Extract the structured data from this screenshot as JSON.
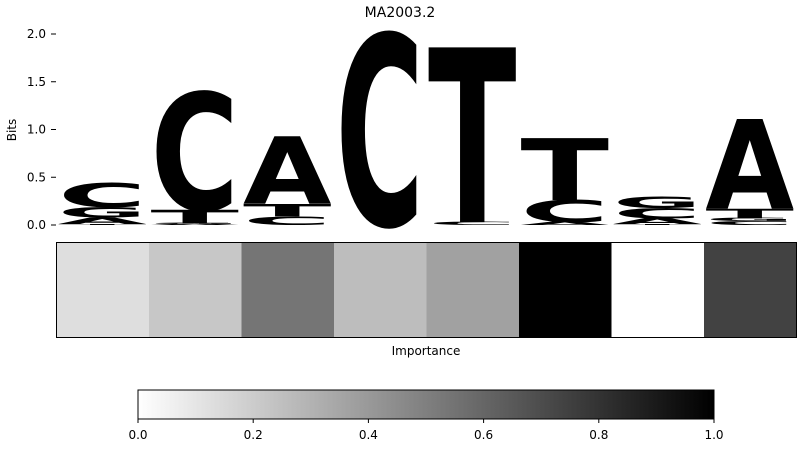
{
  "chart_data": {
    "type": "sequence-logo-with-importance",
    "title": "MA2003.2",
    "logo": {
      "ylabel": "Bits",
      "ylim": [
        0,
        2.0
      ],
      "yticks": [
        "0.0",
        "0.5",
        "1.0",
        "1.5",
        "2.0"
      ],
      "colors": {
        "A": "#4fa64f",
        "C": "#4c4cff",
        "G": "#ffb84c",
        "T": "#ff4c4c"
      },
      "positions": [
        [
          {
            "base": "T",
            "bits": 0.01
          },
          {
            "base": "A",
            "bits": 0.07
          },
          {
            "base": "G",
            "bits": 0.11
          },
          {
            "base": "C",
            "bits": 0.25
          }
        ],
        [
          {
            "base": "A",
            "bits": 0.01
          },
          {
            "base": "G",
            "bits": 0.01
          },
          {
            "base": "T",
            "bits": 0.14
          },
          {
            "base": "C",
            "bits": 1.23
          }
        ],
        [
          {
            "base": "C",
            "bits": 0.09
          },
          {
            "base": "T",
            "bits": 0.13
          },
          {
            "base": "A",
            "bits": 0.71
          }
        ],
        [
          {
            "base": "C",
            "bits": 2.0
          }
        ],
        [
          {
            "base": "C",
            "bits": 0.03
          },
          {
            "base": "T",
            "bits": 1.83
          }
        ],
        [
          {
            "base": "A",
            "bits": 0.03
          },
          {
            "base": "C",
            "bits": 0.23
          },
          {
            "base": "T",
            "bits": 0.65
          }
        ],
        [
          {
            "base": "T",
            "bits": 0.01
          },
          {
            "base": "A",
            "bits": 0.06
          },
          {
            "base": "C",
            "bits": 0.11
          },
          {
            "base": "G",
            "bits": 0.12
          }
        ],
        [
          {
            "base": "C",
            "bits": 0.04
          },
          {
            "base": "G",
            "bits": 0.03
          },
          {
            "base": "T",
            "bits": 0.1
          },
          {
            "base": "A",
            "bits": 0.94
          }
        ]
      ]
    },
    "importance": {
      "xlabel": "Importance",
      "values": [
        0.13,
        0.22,
        0.54,
        0.26,
        0.37,
        1.0,
        0.0,
        0.74
      ]
    },
    "colorbar": {
      "range": [
        0.0,
        1.0
      ],
      "ticks": [
        "0.0",
        "0.2",
        "0.4",
        "0.6",
        "0.8",
        "1.0"
      ],
      "colormap": "greys"
    }
  }
}
